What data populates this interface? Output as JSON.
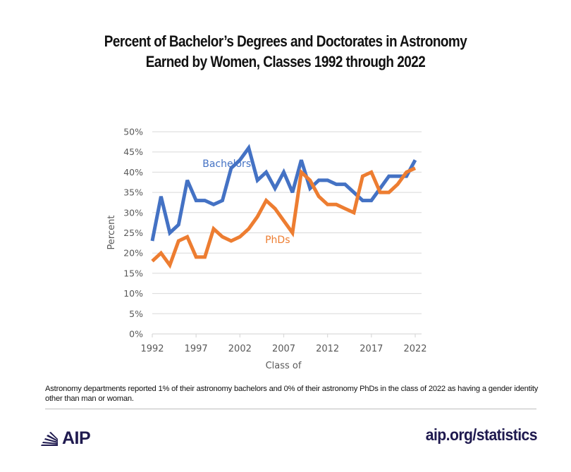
{
  "title": {
    "line1": "Percent of Bachelor’s Degrees and Doctorates in Astronomy",
    "line2": "Earned by Women, Classes 1992 through 2022"
  },
  "chart_data": {
    "type": "line",
    "title": "Percent of Bachelor’s Degrees and Doctorates in Astronomy Earned by Women, Classes 1992 through 2022",
    "xlabel": "Class of",
    "ylabel": "Percent",
    "ylim": [
      0,
      50
    ],
    "y_ticks": [
      "0%",
      "5%",
      "10%",
      "15%",
      "20%",
      "25%",
      "30%",
      "35%",
      "40%",
      "45%",
      "50%"
    ],
    "x_tick_labels": [
      "1992",
      "1997",
      "2002",
      "2007",
      "2012",
      "2017",
      "2022"
    ],
    "grid": "horizontal",
    "legend_position": "inline labels",
    "x": [
      1992,
      1993,
      1994,
      1995,
      1996,
      1997,
      1998,
      1999,
      2000,
      2001,
      2002,
      2003,
      2004,
      2005,
      2006,
      2007,
      2008,
      2009,
      2010,
      2011,
      2012,
      2013,
      2014,
      2015,
      2016,
      2017,
      2018,
      2019,
      2020,
      2021,
      2022
    ],
    "series": [
      {
        "name": "Bachelors",
        "color": "#4472c4",
        "label_position": {
          "x": 2000.5,
          "y": 41.3
        },
        "values": [
          23,
          34,
          25,
          27,
          38,
          33,
          33,
          32,
          33,
          41,
          43,
          46,
          38,
          40,
          36,
          40,
          35,
          43,
          36,
          38,
          38,
          37,
          37,
          35,
          33,
          33,
          36,
          39,
          39,
          39,
          43
        ]
      },
      {
        "name": "PhDs",
        "color": "#ed7d31",
        "label_position": {
          "x": 2006.3,
          "y": 22.5
        },
        "values": [
          18,
          20,
          17,
          23,
          24,
          19,
          19,
          26,
          24,
          23,
          24,
          26,
          29,
          33,
          31,
          28,
          25,
          40,
          38,
          34,
          32,
          32,
          31,
          30,
          39,
          40,
          35,
          35,
          37,
          40,
          41
        ]
      }
    ]
  },
  "note": "Astronomy departments reported 1% of their astronomy bachelors and 0% of their astronomy PhDs in the class of 2022 as having a gender identity other than man or woman.",
  "footer": {
    "logo_text": "AIP",
    "logo_icon": "aip-fan-icon",
    "url": "aip.org/statistics",
    "brand_color": "#1f1a4f"
  }
}
